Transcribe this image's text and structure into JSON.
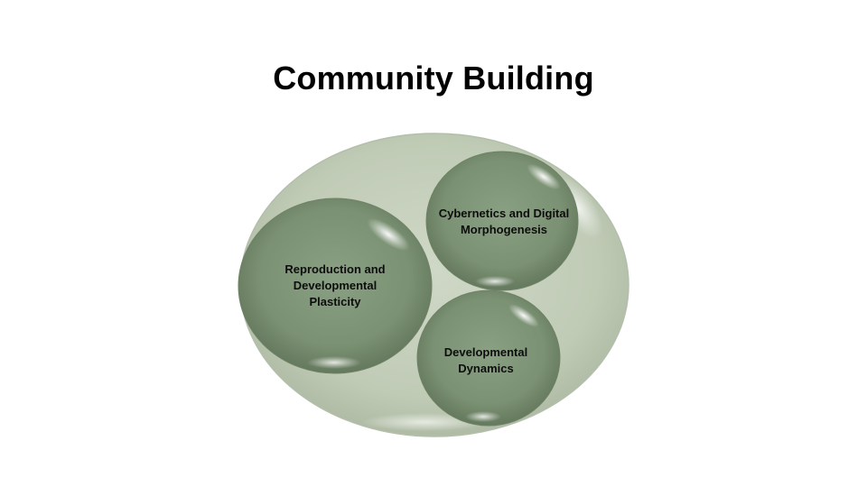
{
  "slide": {
    "title": "Community Building"
  },
  "diagram": {
    "outer": {
      "label": ""
    },
    "bubbles": [
      {
        "id": "reproduction",
        "lines": [
          "Reproduction and",
          "Developmental",
          "Plasticity"
        ]
      },
      {
        "id": "cybernetics",
        "lines": [
          "Cybernetics and Digital",
          "Morphogenesis"
        ]
      },
      {
        "id": "dynamics",
        "lines": [
          "Developmental",
          "Dynamics"
        ]
      }
    ]
  },
  "colors": {
    "outer_fill": "#c3cdb9",
    "outer_stroke": "#aab6a2",
    "bubble_fill": "#7f9577",
    "bubble_dark": "#5f7558",
    "highlight": "#ffffff"
  }
}
